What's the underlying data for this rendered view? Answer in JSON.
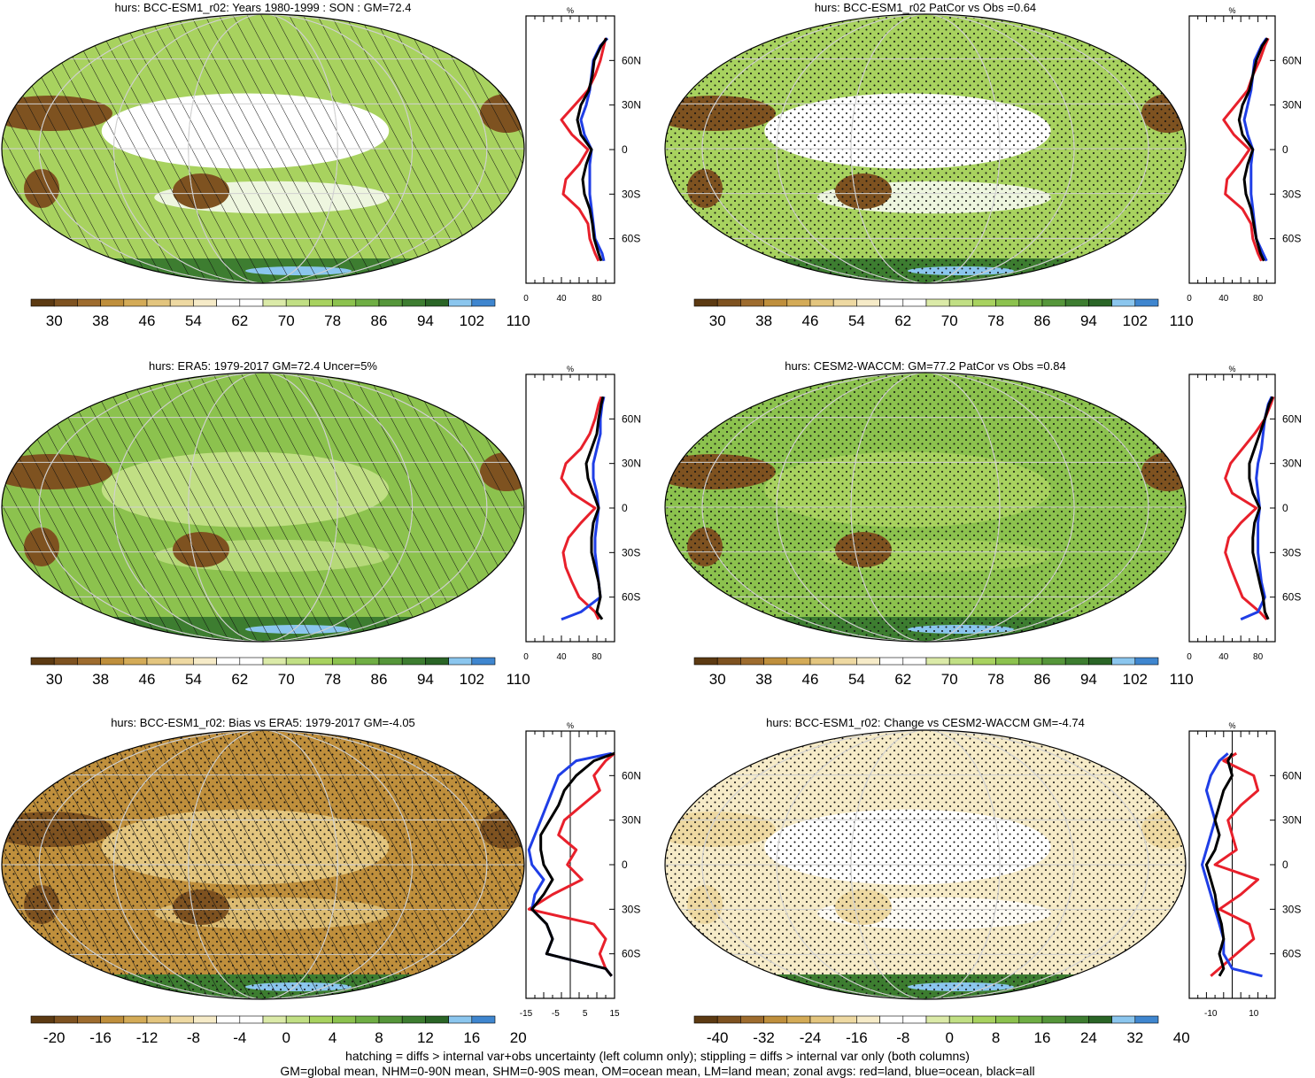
{
  "footer": {
    "line1": "hatching = diffs > internal var+obs uncertainty (left column only); stippling = diffs > internal var only (both columns)",
    "line2": "GM=global mean, NHM=0-90N mean, SHM=0-90S mean, OM=ocean mean, LM=land mean; zonal avgs: red=land, blue=ocean, black=all"
  },
  "colors": {
    "abs_scale": [
      "#5c3a12",
      "#7e5220",
      "#9e6c2e",
      "#bf8f3c",
      "#d4ab57",
      "#e3c57e",
      "#eed9a2",
      "#f6ebc8",
      "#ffffff",
      "#ffffff",
      "#dbeaa8",
      "#c1df84",
      "#a8d25f",
      "#8cc24e",
      "#6fae44",
      "#55963a",
      "#3d7d30",
      "#2a6526",
      "#8bc6ee",
      "#3f86cf"
    ],
    "land": "#e8202b",
    "ocean": "#1f3ee6",
    "all": "#000000"
  },
  "chart_data": [
    {
      "type": "heatmap",
      "title": "hurs: BCC-ESM1_r02: Years 1980-1999 : SON : GM=72.4",
      "colorbar_ticks": [
        "30",
        "38",
        "46",
        "54",
        "62",
        "70",
        "78",
        "86",
        "94",
        "102",
        "110"
      ],
      "zonal": {
        "unit": "%",
        "xlim": [
          0,
          100
        ],
        "xticks": [
          "0",
          "40",
          "80"
        ],
        "lat_ticks": [
          "60N",
          "30N",
          "0",
          "30S",
          "60S"
        ],
        "lat": [
          75,
          70,
          60,
          50,
          40,
          30,
          20,
          10,
          0,
          -10,
          -20,
          -30,
          -40,
          -50,
          -60,
          -70,
          -75
        ],
        "series": [
          {
            "key": "land",
            "values": [
              90,
              88,
              84,
              78,
              70,
              55,
              40,
              52,
              70,
              60,
              45,
              42,
              60,
              70,
              72,
              78,
              82
            ]
          },
          {
            "key": "ocean",
            "values": [
              92,
              84,
              76,
              74,
              72,
              68,
              62,
              66,
              74,
              72,
              72,
              72,
              74,
              76,
              78,
              86,
              88
            ]
          },
          {
            "key": "all",
            "values": [
              91,
              85,
              77,
              75,
              71,
              62,
              58,
              62,
              74,
              68,
              64,
              66,
              72,
              75,
              77,
              82,
              85
            ]
          }
        ]
      }
    },
    {
      "type": "heatmap",
      "title": "hurs: BCC-ESM1_r02 PatCor vs Obs =0.64",
      "colorbar_ticks": [
        "30",
        "38",
        "46",
        "54",
        "62",
        "70",
        "78",
        "86",
        "94",
        "102",
        "110"
      ],
      "zonal": {
        "unit": "%",
        "xlim": [
          0,
          100
        ],
        "xticks": [
          "0",
          "40",
          "80"
        ],
        "lat_ticks": [
          "60N",
          "30N",
          "0",
          "30S",
          "60S"
        ],
        "lat": [
          75,
          70,
          60,
          50,
          40,
          30,
          20,
          10,
          0,
          -10,
          -20,
          -30,
          -40,
          -50,
          -60,
          -70,
          -75
        ],
        "series": [
          {
            "key": "land",
            "values": [
              92,
              88,
              82,
              74,
              68,
              54,
              40,
              52,
              70,
              58,
              44,
              42,
              62,
              72,
              74,
              80,
              84
            ]
          },
          {
            "key": "ocean",
            "values": [
              90,
              84,
              76,
              74,
              72,
              68,
              64,
              68,
              74,
              72,
              72,
              72,
              74,
              76,
              78,
              86,
              90
            ]
          },
          {
            "key": "all",
            "values": [
              91,
              85,
              78,
              74,
              70,
              62,
              58,
              62,
              74,
              68,
              64,
              66,
              72,
              75,
              78,
              83,
              87
            ]
          }
        ]
      }
    },
    {
      "type": "heatmap",
      "title": "hurs: ERA5: 1979-2017 GM=72.4 Uncer=5%",
      "colorbar_ticks": [
        "30",
        "38",
        "46",
        "54",
        "62",
        "70",
        "78",
        "86",
        "94",
        "102",
        "110"
      ],
      "zonal": {
        "unit": "%",
        "xlim": [
          0,
          100
        ],
        "xticks": [
          "0",
          "40",
          "80"
        ],
        "lat_ticks": [
          "60N",
          "30N",
          "0",
          "30S",
          "60S"
        ],
        "lat": [
          75,
          70,
          60,
          50,
          40,
          30,
          20,
          10,
          0,
          -10,
          -20,
          -30,
          -40,
          -50,
          -60,
          -70,
          -75
        ],
        "series": [
          {
            "key": "land",
            "values": [
              85,
              82,
              78,
              72,
              62,
              45,
              40,
              52,
              78,
              62,
              48,
              42,
              45,
              52,
              60,
              78,
              82
            ]
          },
          {
            "key": "ocean",
            "values": [
              88,
              86,
              84,
              84,
              80,
              76,
              76,
              80,
              82,
              80,
              78,
              78,
              80,
              82,
              84,
              62,
              40
            ]
          },
          {
            "key": "all",
            "values": [
              87,
              85,
              82,
              80,
              74,
              68,
              70,
              76,
              82,
              76,
              74,
              74,
              78,
              82,
              84,
              80,
              86
            ]
          }
        ]
      }
    },
    {
      "type": "heatmap",
      "title": "hurs: CESM2-WACCM: GM=77.2 PatCor vs Obs =0.84",
      "colorbar_ticks": [
        "30",
        "38",
        "46",
        "54",
        "62",
        "70",
        "78",
        "86",
        "94",
        "102",
        "110"
      ],
      "zonal": {
        "unit": "%",
        "xlim": [
          0,
          100
        ],
        "xticks": [
          "0",
          "40",
          "80"
        ],
        "lat_ticks": [
          "60N",
          "30N",
          "0",
          "30S",
          "60S"
        ],
        "lat": [
          75,
          70,
          60,
          50,
          40,
          30,
          20,
          10,
          0,
          -10,
          -20,
          -30,
          -40,
          -50,
          -60,
          -70,
          -75
        ],
        "series": [
          {
            "key": "land",
            "values": [
              98,
              95,
              88,
              76,
              62,
              48,
              42,
              50,
              78,
              60,
              46,
              42,
              48,
              55,
              62,
              82,
              90
            ]
          },
          {
            "key": "ocean",
            "values": [
              96,
              92,
              88,
              86,
              84,
              80,
              78,
              80,
              82,
              80,
              80,
              80,
              82,
              84,
              88,
              80,
              60
            ]
          },
          {
            "key": "all",
            "values": [
              97,
              93,
              88,
              82,
              76,
              70,
              70,
              74,
              82,
              76,
              74,
              74,
              78,
              82,
              86,
              88,
              92
            ]
          }
        ]
      }
    },
    {
      "type": "heatmap",
      "title": "hurs: BCC-ESM1_r02: Bias vs ERA5: 1979-2017  GM=-4.05",
      "colorbar_ticks": [
        "-20",
        "-16",
        "-12",
        "-8",
        "-4",
        "0",
        "4",
        "8",
        "12",
        "16",
        "20"
      ],
      "zonal": {
        "unit": "%",
        "xlim": [
          -15,
          15
        ],
        "xticks": [
          "-15",
          "-5",
          "5",
          "15"
        ],
        "lat_ticks": [
          "60N",
          "30N",
          "0",
          "30S",
          "60S"
        ],
        "lat": [
          75,
          70,
          60,
          50,
          40,
          30,
          20,
          10,
          0,
          -10,
          -20,
          -30,
          -40,
          -50,
          -60,
          -70,
          -75
        ],
        "series": [
          {
            "key": "land",
            "values": [
              15,
              12,
              8,
              10,
              4,
              -2,
              -4,
              2,
              -1,
              4,
              -6,
              -14,
              8,
              12,
              10,
              12,
              14
            ]
          },
          {
            "key": "ocean",
            "values": [
              14,
              2,
              -4,
              -6,
              -8,
              -10,
              -12,
              -14,
              -13,
              -9,
              -12,
              -13,
              -8,
              -6,
              -8,
              12,
              14
            ]
          },
          {
            "key": "all",
            "values": [
              15,
              8,
              2,
              -2,
              -4,
              -7,
              -10,
              -10,
              -9,
              -6,
              -9,
              -13,
              -8,
              -6,
              -8,
              12,
              14
            ]
          }
        ]
      }
    },
    {
      "type": "heatmap",
      "title": "hurs: BCC-ESM1_r02: Change vs CESM2-WACCM GM=-4.74",
      "colorbar_ticks": [
        "-40",
        "-32",
        "-24",
        "-16",
        "-8",
        "0",
        "8",
        "16",
        "24",
        "32",
        "40"
      ],
      "zonal": {
        "unit": "%",
        "xlim": [
          -20,
          20
        ],
        "xticks": [
          "-10",
          "10"
        ],
        "lat_ticks": [
          "60N",
          "30N",
          "0",
          "30S",
          "60S"
        ],
        "lat": [
          75,
          70,
          60,
          50,
          40,
          30,
          20,
          10,
          0,
          -10,
          -20,
          -30,
          -40,
          -50,
          -60,
          -70,
          -75
        ],
        "series": [
          {
            "key": "land",
            "values": [
              2,
              -4,
              10,
              12,
              4,
              -2,
              0,
              2,
              -8,
              12,
              4,
              -6,
              8,
              10,
              2,
              -6,
              -10
            ]
          },
          {
            "key": "ocean",
            "values": [
              -2,
              -6,
              -10,
              -12,
              -10,
              -8,
              -10,
              -12,
              -14,
              -12,
              -10,
              -8,
              -6,
              -4,
              -4,
              0,
              14
            ]
          },
          {
            "key": "all",
            "values": [
              0,
              -2,
              0,
              -4,
              -6,
              -8,
              -6,
              -8,
              -12,
              -10,
              -8,
              -7,
              -5,
              -4,
              -6,
              -4,
              -6
            ]
          }
        ]
      }
    }
  ]
}
